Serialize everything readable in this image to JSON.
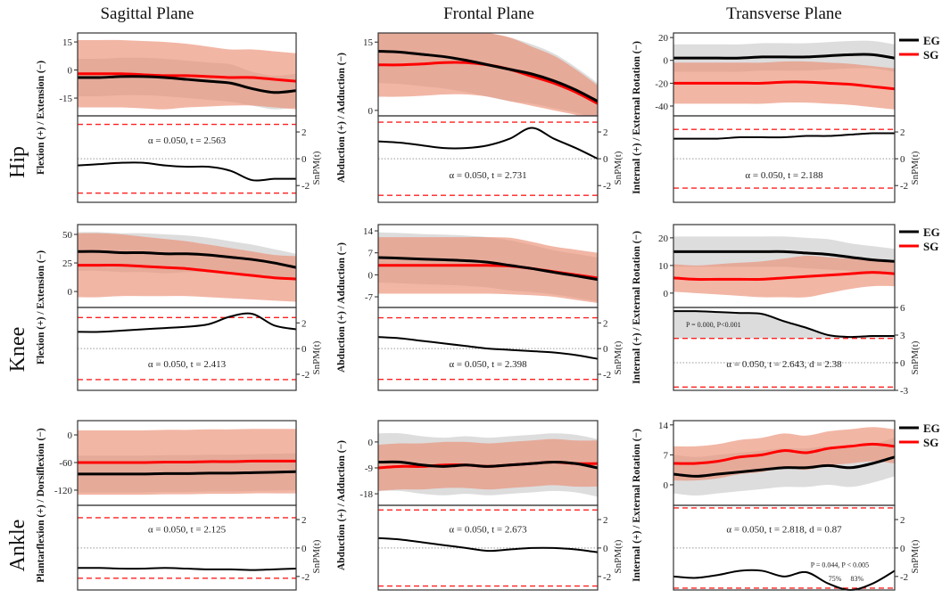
{
  "colors": {
    "eg": "#000000",
    "sg": "#ff0000",
    "eg_band": "#d9d9d9",
    "sg_band": "#eb8f74",
    "threshold": "#ff2020"
  },
  "chart_data": {
    "type": "line",
    "column_titles": [
      "Sagittal Plane",
      "Frontal Plane",
      "Transverse Plane"
    ],
    "row_titles": [
      "Hip",
      "Knee",
      "Ankle"
    ],
    "spm_label": "SnPM(t)",
    "legend": [
      {
        "name": "EG",
        "color": "#000000"
      },
      {
        "name": "SG",
        "color": "#ff0000"
      }
    ],
    "legend_placement": "right of transverse column",
    "x_range": [
      0,
      100
    ],
    "panels": [
      {
        "row": 0,
        "col": 0,
        "ylabel": "Flexion (+) / Extension (−)",
        "kin": {
          "ylim": [
            -24.5,
            19.8
          ],
          "yticks": [
            "15",
            "0",
            "-15"
          ],
          "ytick_values": [
            15,
            0,
            -15
          ],
          "eg": [
            -4,
            -4,
            -3.5,
            -3.5,
            -4,
            -5,
            -6,
            -7,
            -10,
            -12,
            -11
          ],
          "eg_sd": [
            10,
            10,
            10,
            10,
            10,
            10,
            10,
            10,
            9,
            9,
            9
          ],
          "sg": [
            -2,
            -2,
            -2,
            -2.5,
            -3,
            -3,
            -3.5,
            -4,
            -4,
            -5,
            -6
          ],
          "sg_sd": [
            18,
            18,
            18,
            18,
            18,
            17,
            16,
            15,
            15,
            15,
            15
          ]
        },
        "spm": {
          "ylim": [
            -3.25,
            3.2
          ],
          "yticks": [
            "2",
            "0",
            "-2"
          ],
          "ytick_values": [
            2,
            0,
            -2
          ],
          "threshold": 2.563,
          "curve": [
            -0.5,
            -0.4,
            -0.3,
            -0.3,
            -0.5,
            -0.6,
            -0.6,
            -0.9,
            -1.6,
            -1.5,
            -1.5
          ],
          "text": "α = 0.050, t = 2.563",
          "text_position": "upper"
        }
      },
      {
        "row": 0,
        "col": 1,
        "ylabel": "Abduction (+) / Adduction (−)",
        "kin": {
          "ylim": [
            -1.2,
            17
          ],
          "yticks": [
            "15",
            "0"
          ],
          "ytick_values": [
            15,
            0
          ],
          "eg": [
            13,
            12.8,
            12.3,
            11.8,
            11,
            10,
            9,
            8,
            6.5,
            4.5,
            2
          ],
          "eg_sd": [
            7,
            7,
            7,
            7,
            7,
            7,
            7,
            6.5,
            6,
            5,
            4
          ],
          "sg": [
            10,
            10,
            10.2,
            10.5,
            10.5,
            10,
            9,
            7.5,
            6,
            4,
            1.5
          ],
          "sg_sd": [
            7,
            7,
            7,
            7,
            7,
            7,
            7,
            6.5,
            6,
            5,
            4
          ]
        },
        "spm": {
          "ylim": [
            -3.25,
            3.2
          ],
          "yticks": [
            "2",
            "0",
            "-2"
          ],
          "ytick_values": [
            2,
            0,
            -2
          ],
          "threshold": 2.731,
          "curve": [
            1.3,
            1.2,
            1,
            0.8,
            0.8,
            1,
            1.5,
            2.3,
            1.5,
            0.8,
            0
          ],
          "text": "α = 0.050, t = 2.731",
          "text_position": "lower"
        }
      },
      {
        "row": 0,
        "col": 2,
        "ylabel": "Internal (+) / External Rotation (−)",
        "kin": {
          "ylim": [
            -48.6,
            24
          ],
          "yticks": [
            "20",
            "0",
            "-20",
            "-40"
          ],
          "ytick_values": [
            20,
            0,
            -20,
            -40
          ],
          "eg": [
            2,
            2,
            2,
            2,
            3,
            3,
            3,
            4,
            5,
            5,
            2
          ],
          "eg_sd": [
            12,
            12,
            12,
            12,
            12,
            12,
            12,
            12,
            12,
            12,
            12
          ],
          "sg": [
            -20,
            -20,
            -20,
            -20,
            -20,
            -19,
            -19,
            -20,
            -21,
            -23,
            -25
          ],
          "sg_sd": [
            18,
            18,
            18,
            18,
            18,
            18,
            18,
            18,
            18,
            18,
            18
          ]
        },
        "spm": {
          "ylim": [
            -3.25,
            3.2
          ],
          "yticks": [
            "2",
            "0",
            "-2"
          ],
          "ytick_values": [
            2,
            0,
            -2
          ],
          "threshold": 2.188,
          "curve": [
            1.5,
            1.5,
            1.5,
            1.6,
            1.6,
            1.6,
            1.7,
            1.7,
            1.8,
            1.9,
            1.9
          ],
          "text": "α = 0.050, t = 2.188",
          "text_position": "lower"
        }
      },
      {
        "row": 1,
        "col": 0,
        "ylabel": "Flexion (+) / Extension (−)",
        "kin": {
          "ylim": [
            -14,
            58.6
          ],
          "yticks": [
            "50",
            "25",
            "0"
          ],
          "ytick_values": [
            50,
            25,
            0
          ],
          "eg": [
            35,
            35,
            34,
            34,
            33,
            33,
            32,
            30,
            28,
            25,
            21
          ],
          "eg_sd": [
            17,
            17,
            17,
            17,
            17,
            16,
            15,
            14,
            13,
            12,
            12
          ],
          "sg": [
            23,
            23,
            23,
            22,
            21,
            20,
            18,
            16,
            14,
            12,
            11
          ],
          "sg_sd": [
            28,
            28,
            27,
            26,
            25,
            24,
            23,
            22,
            21,
            20,
            20
          ]
        },
        "spm": {
          "ylim": [
            -3.25,
            3.2
          ],
          "yticks": [
            "2",
            "0",
            "-2"
          ],
          "ytick_values": [
            2,
            0,
            -2
          ],
          "threshold": 2.413,
          "curve": [
            1.3,
            1.3,
            1.4,
            1.5,
            1.6,
            1.7,
            1.9,
            2.5,
            2.7,
            1.8,
            1.5
          ],
          "text": "α = 0.050, t = 2.413",
          "text_position": "lower"
        }
      },
      {
        "row": 1,
        "col": 1,
        "ylabel": "Abduction (+) / Adduction (−)",
        "kin": {
          "ylim": [
            -10.4,
            16
          ],
          "yticks": [
            "14",
            "7",
            "0",
            "-7"
          ],
          "ytick_values": [
            14,
            7,
            0,
            -7
          ],
          "eg": [
            5.5,
            5.3,
            5,
            4.8,
            4.5,
            4,
            3,
            2,
            0.8,
            -0.3,
            -1.5
          ],
          "eg_sd": [
            8,
            8,
            8,
            8,
            8,
            8,
            8,
            7.5,
            7,
            7,
            7
          ],
          "sg": [
            3,
            3,
            3,
            3,
            3,
            3,
            2.8,
            2,
            1,
            0,
            -1
          ],
          "sg_sd": [
            9,
            9,
            9,
            9,
            9,
            9,
            9,
            8.5,
            8,
            8,
            8
          ]
        },
        "spm": {
          "ylim": [
            -3.25,
            3.2
          ],
          "yticks": [
            "2",
            "0",
            "-2"
          ],
          "ytick_values": [
            2,
            0,
            -2
          ],
          "threshold": 2.398,
          "curve": [
            0.9,
            0.8,
            0.6,
            0.4,
            0.2,
            0,
            -0.1,
            -0.2,
            -0.3,
            -0.5,
            -0.8
          ],
          "text": "α = 0.050, t = 2.398",
          "text_position": "lower"
        }
      },
      {
        "row": 1,
        "col": 2,
        "ylabel": "Internal (+) / External Rotation (−)",
        "kin": {
          "ylim": [
            -5.2,
            24.8
          ],
          "yticks": [
            "20",
            "10",
            "0"
          ],
          "ytick_values": [
            20,
            10,
            0
          ],
          "eg": [
            15,
            15,
            15,
            15,
            15,
            15,
            14.5,
            14,
            13,
            12,
            11.5
          ],
          "eg_sd": [
            5.5,
            5.5,
            5.5,
            5.5,
            5.5,
            5.5,
            5.5,
            5.5,
            5,
            5,
            4.5
          ],
          "sg": [
            5.5,
            5,
            5,
            5,
            5,
            5.5,
            6,
            6.5,
            7,
            7.5,
            7
          ],
          "sg_sd": [
            5,
            5,
            5.5,
            6,
            6.5,
            7,
            7.5,
            6.5,
            5.5,
            5,
            4.5
          ]
        },
        "spm": {
          "ylim": [
            -3,
            6
          ],
          "yticks": [
            "6",
            "3",
            "0",
            "-3"
          ],
          "ytick_values": [
            6,
            3,
            0,
            -3
          ],
          "threshold": 2.643,
          "curve": [
            5.6,
            5.6,
            5.5,
            5.4,
            5.3,
            4.5,
            3.8,
            3.0,
            2.8,
            2.9,
            2.9
          ],
          "shade_above_threshold": true,
          "cluster_text": "P = 0.000, P<0.001",
          "text": "α = 0.050, t = 2.643, d = 2.38",
          "text_position": "lower"
        }
      },
      {
        "row": 2,
        "col": 0,
        "ylabel": "Plantarflexion (+) / Dorsiflexion (−)",
        "kin": {
          "ylim": [
            -153,
            31
          ],
          "yticks": [
            "0",
            "-60",
            "-120"
          ],
          "ytick_values": [
            0,
            -60,
            -120
          ],
          "eg": [
            -85,
            -85,
            -85,
            -85,
            -84,
            -84,
            -83,
            -83,
            -82,
            -81,
            -80
          ],
          "eg_sd": [
            40,
            40,
            40,
            40,
            40,
            40,
            40,
            40,
            40,
            40,
            40
          ],
          "sg": [
            -60,
            -60,
            -60,
            -60,
            -59,
            -59,
            -58,
            -58,
            -57,
            -57,
            -57
          ],
          "sg_sd": [
            70,
            70,
            70,
            70,
            70,
            70,
            70,
            70,
            70,
            70,
            70
          ]
        },
        "spm": {
          "ylim": [
            -2.95,
            3
          ],
          "yticks": [
            "2",
            "0",
            "-2"
          ],
          "ytick_values": [
            2,
            0,
            -2
          ],
          "threshold": 2.125,
          "curve": [
            -1.4,
            -1.4,
            -1.45,
            -1.45,
            -1.4,
            -1.45,
            -1.5,
            -1.5,
            -1.55,
            -1.5,
            -1.45
          ],
          "text": "α = 0.050, t = 2.125",
          "text_position": "upper"
        }
      },
      {
        "row": 2,
        "col": 1,
        "ylabel": "Abduction (+) / Adduction (−)",
        "kin": {
          "ylim": [
            -22,
            7.4
          ],
          "yticks": [
            "0",
            "-9",
            "-18"
          ],
          "ytick_values": [
            0,
            -9,
            -18
          ],
          "eg": [
            -7,
            -7,
            -8,
            -8.5,
            -8,
            -8.5,
            -8,
            -7.5,
            -7,
            -7.5,
            -9
          ],
          "eg_sd": [
            10,
            10,
            10,
            10,
            10,
            10,
            10,
            10,
            10,
            10,
            10
          ],
          "sg": [
            -9,
            -8.5,
            -8.5,
            -8,
            -8,
            -8.5,
            -8,
            -7.5,
            -7,
            -7.5,
            -7.5
          ],
          "sg_sd": [
            8,
            8,
            8,
            8,
            8,
            8,
            8,
            8,
            8,
            8,
            8
          ]
        },
        "spm": {
          "ylim": [
            -2.95,
            3
          ],
          "yticks": [
            "2",
            "0",
            "-2"
          ],
          "ytick_values": [
            2,
            0,
            -2
          ],
          "threshold": 2.673,
          "curve": [
            0.7,
            0.6,
            0.4,
            0.2,
            0,
            -0.2,
            -0.1,
            0,
            0,
            -0.1,
            -0.3
          ],
          "text": "α = 0.050, t = 2.673",
          "text_position": "upper"
        }
      },
      {
        "row": 2,
        "col": 2,
        "ylabel": "Internal (+) / External Rotation (−)",
        "kin": {
          "ylim": [
            -4.8,
            15
          ],
          "yticks": [
            "14",
            "7",
            "0"
          ],
          "ytick_values": [
            14,
            7,
            0
          ],
          "eg": [
            2.5,
            2,
            2.5,
            3,
            3.5,
            4,
            4,
            4.5,
            4,
            5,
            6.5
          ],
          "eg_sd": [
            4.5,
            4.5,
            4.5,
            4.5,
            4.5,
            4.5,
            4.5,
            4.5,
            4.5,
            4.5,
            4.5
          ],
          "sg": [
            5,
            5,
            5.5,
            6.5,
            7,
            8,
            7.5,
            8.5,
            9,
            9.5,
            9
          ],
          "sg_sd": [
            4,
            4,
            4,
            4,
            4,
            4,
            4,
            4,
            4,
            4,
            4
          ]
        },
        "spm": {
          "ylim": [
            -2.95,
            3
          ],
          "yticks": [
            "2",
            "0",
            "-2"
          ],
          "ytick_values": [
            2,
            0,
            -2
          ],
          "threshold": 2.818,
          "curve": [
            -2,
            -2.1,
            -1.9,
            -1.6,
            -1.6,
            -2,
            -1.7,
            -2.5,
            -2.95,
            -2.5,
            -1.6
          ],
          "cluster_text": "P = 0.044, P < 0.005",
          "cluster_marks": [
            "75%",
            "83%"
          ],
          "text": "α = 0.050, t = 2.818, d = 0.87",
          "text_position": "upper"
        }
      }
    ]
  }
}
